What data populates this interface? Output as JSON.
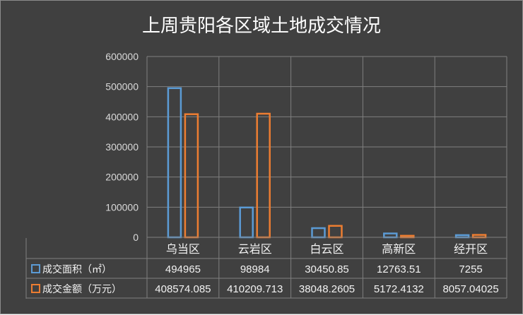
{
  "chart_data": {
    "type": "bar",
    "title": "上周贵阳各区域土地成交情况",
    "categories": [
      "乌当区",
      "云岩区",
      "白云区",
      "高新区",
      "经开区"
    ],
    "series": [
      {
        "name": "成交面积（㎡）",
        "color": "#5b9bd5",
        "values": [
          494965,
          98984,
          30450.85,
          12763.51,
          7255
        ],
        "labels": [
          "494965",
          "98984",
          "30450.85",
          "12763.51",
          "7255"
        ]
      },
      {
        "name": "成交金额（万元）",
        "color": "#ed7d31",
        "values": [
          408574.085,
          410209.713,
          38048.2605,
          5172.4132,
          8057.04025
        ],
        "labels": [
          "408574.085",
          "410209.713",
          "38048.2605",
          "5172.4132",
          "8057.04025"
        ]
      }
    ],
    "ylim": [
      0,
      600000
    ],
    "yticks": [
      "0",
      "100000",
      "200000",
      "300000",
      "400000",
      "500000",
      "600000"
    ],
    "grid": true,
    "legend": "data-table"
  }
}
